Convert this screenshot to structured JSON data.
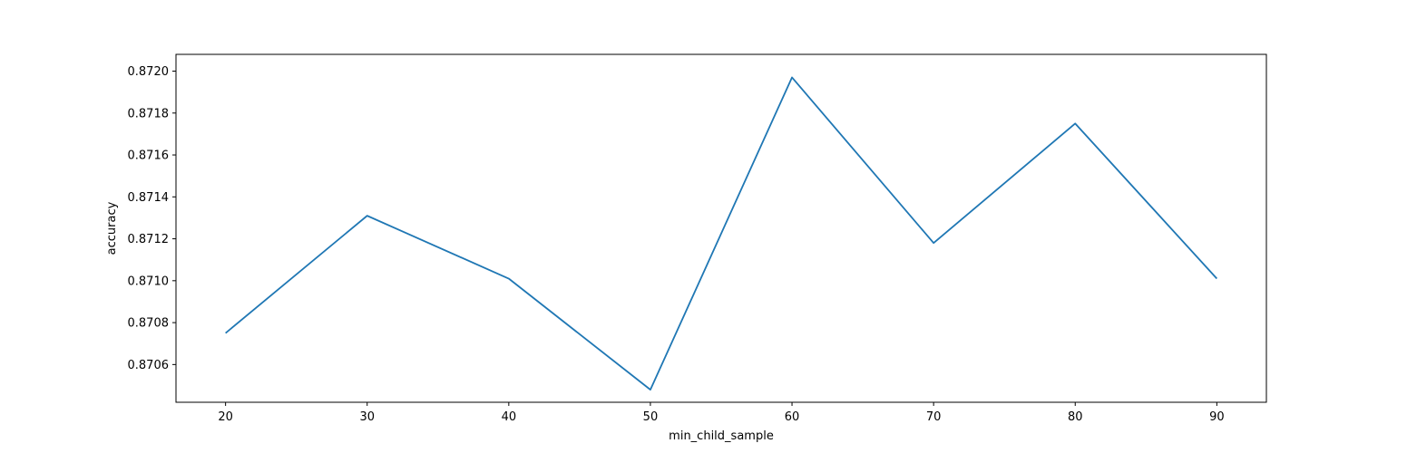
{
  "chart_data": {
    "type": "line",
    "title": "",
    "xlabel": "min_child_sample",
    "ylabel": "accuracy",
    "xlim": [
      16.5,
      93.5
    ],
    "ylim": [
      0.87042,
      0.87208
    ],
    "xticks": [
      20,
      30,
      40,
      50,
      60,
      70,
      80,
      90
    ],
    "xtick_labels": [
      "20",
      "30",
      "40",
      "50",
      "60",
      "70",
      "80",
      "90"
    ],
    "yticks": [
      0.8706,
      0.8708,
      0.871,
      0.8712,
      0.8714,
      0.8716,
      0.8718,
      0.872
    ],
    "ytick_labels": [
      "0.8706",
      "0.8708",
      "0.8710",
      "0.8712",
      "0.8714",
      "0.8716",
      "0.8718",
      "0.8720"
    ],
    "grid": false,
    "series": [
      {
        "color": "#1f77b4",
        "x": [
          20,
          30,
          40,
          50,
          60,
          70,
          80,
          90
        ],
        "y": [
          0.87075,
          0.87131,
          0.87101,
          0.87048,
          0.87197,
          0.87118,
          0.87175,
          0.87101
        ]
      }
    ]
  }
}
